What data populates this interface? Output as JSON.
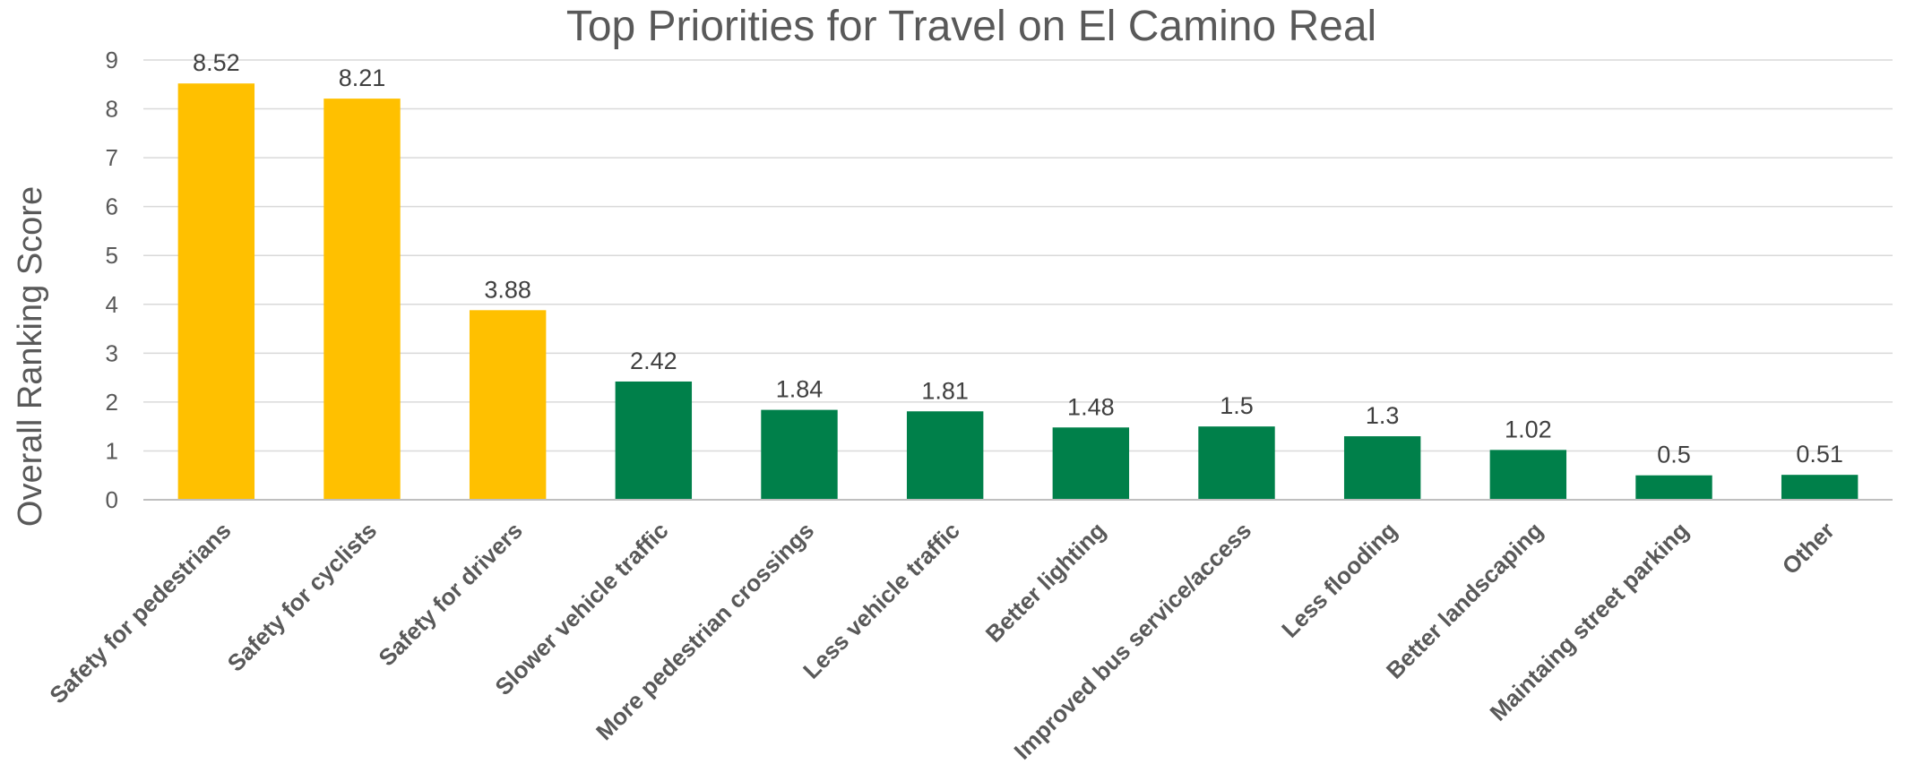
{
  "chart_data": {
    "type": "bar",
    "title": "Top Priorities for Travel on El Camino Real",
    "xlabel": "",
    "ylabel": "Overall Ranking Score",
    "ylim": [
      0,
      9
    ],
    "yticks": [
      0,
      1,
      2,
      3,
      4,
      5,
      6,
      7,
      8,
      9
    ],
    "grid": true,
    "legend": "none",
    "categories": [
      "Safety for pedestrians",
      "Safety for cyclists",
      "Safety for drivers",
      "Slower vehicle traffic",
      "More pedestrian crossings",
      "Less vehicle traffic",
      "Better lighting",
      "Improved bus service/access",
      "Less flooding",
      "Better landscaping",
      "Maintaing street parking",
      "Other"
    ],
    "values": [
      8.52,
      8.21,
      3.88,
      2.42,
      1.84,
      1.81,
      1.48,
      1.5,
      1.3,
      1.02,
      0.5,
      0.51
    ],
    "data_labels": [
      "8.52",
      "8.21",
      "3.88",
      "2.42",
      "1.84",
      "1.81",
      "1.48",
      "1.5",
      "1.3",
      "1.02",
      "0.5",
      "0.51"
    ],
    "bar_colors": [
      "#FFC000",
      "#FFC000",
      "#FFC000",
      "#00804A",
      "#00804A",
      "#00804A",
      "#00804A",
      "#00804A",
      "#00804A",
      "#00804A",
      "#00804A",
      "#00804A"
    ]
  }
}
